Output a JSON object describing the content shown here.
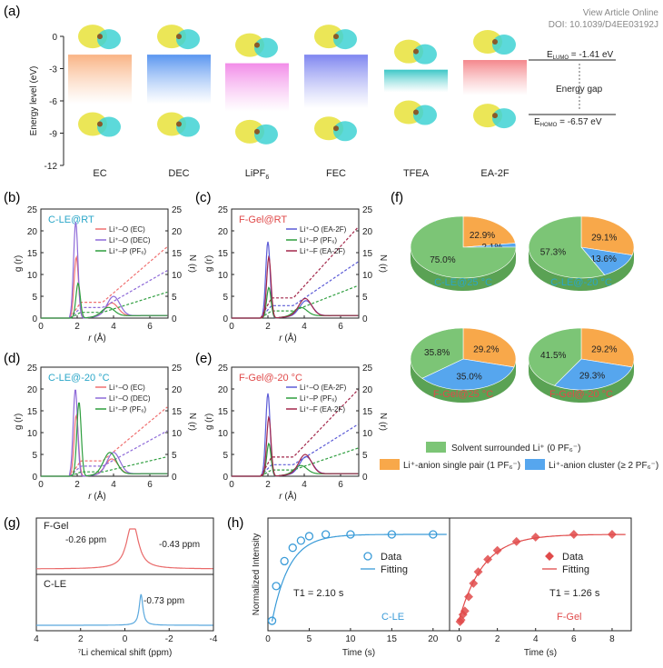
{
  "header": {
    "view_article": "View Article Online",
    "doi": "DOI: 10.1039/D4EE03192J"
  },
  "panel_labels": [
    "(a)",
    "(b)",
    "(c)",
    "(d)",
    "(e)",
    "(f)",
    "(g)",
    "(h)"
  ],
  "colors": {
    "ec": "#f9b384",
    "dec": "#5a96f0",
    "lipf6": "#f28ce8",
    "fec": "#7f86f0",
    "tfea": "#3cc7c7",
    "ea2f": "#f4878c",
    "green": "#7cc576",
    "orange": "#f8a84a",
    "blue": "#56a6ee",
    "cyan": "#2aa6c8",
    "red": "#e04a4a",
    "purple": "#8e6ad8",
    "darkred": "#a3274a",
    "ec_line": "#f07070"
  },
  "chart_data": [
    {
      "id": "a",
      "type": "bar",
      "title": "",
      "ylabel": "Energy level (eV)",
      "ylim": [
        -12,
        0
      ],
      "yticks": [
        "0",
        "-3",
        "-6",
        "-9",
        "-12"
      ],
      "categories": [
        "EC",
        "DEC",
        "LiPF",
        "FEC",
        "TFEA",
        "EA-2F"
      ],
      "category_subscripts": [
        "",
        "",
        "6",
        "",
        "",
        ""
      ],
      "lumo_homo": [
        [
          -1.7,
          -6.3
        ],
        [
          -1.7,
          -6.3
        ],
        [
          -2.5,
          -7.0
        ],
        [
          -1.7,
          -6.7
        ],
        [
          -3.1,
          -5.2
        ],
        [
          -2.2,
          -5.5
        ]
      ],
      "legend": {
        "lumo_prefix": "E",
        "lumo_sub": "LUMO",
        "lumo_value": " = -1.41 eV",
        "homo_prefix": "E",
        "homo_sub": "HOMO",
        "homo_value": " = -6.57 eV",
        "gap_label": "Energy gap"
      }
    },
    {
      "id": "b",
      "type": "line",
      "title": "C-LE@RT",
      "xlabel_italic": "r",
      "xlabel_unit": " (Å)",
      "ylabel": "g (r)",
      "y2label": "N (r)",
      "xlim": [
        0,
        7
      ],
      "ylim": [
        0,
        25
      ],
      "y2lim": [
        0,
        25
      ],
      "xticks": [
        "0",
        "2",
        "4",
        "6"
      ],
      "yticks": [
        "0",
        "5",
        "10",
        "15",
        "20",
        "25"
      ],
      "series": [
        {
          "name": "Li⁺–O (EC)",
          "color": "#f07070",
          "peaks": [
            [
              1.95,
              14.0
            ],
            [
              3.9,
              3.0
            ]
          ],
          "n_end": 16.5
        },
        {
          "name": "Li⁺–O (DEC)",
          "color": "#8e6ad8",
          "peaks": [
            [
              1.92,
              22.0
            ],
            [
              4.0,
              4.5
            ]
          ],
          "n_end": 11.0
        },
        {
          "name": "Li⁺–P (PF₆)",
          "color": "#2e9e3e",
          "peaks": [
            [
              2.05,
              8.0
            ],
            [
              3.7,
              2.0
            ]
          ],
          "n_end": 6.0
        }
      ]
    },
    {
      "id": "c",
      "type": "line",
      "title": "F-Gel@RT",
      "xlabel_italic": "r",
      "xlabel_unit": " (Å)",
      "ylabel": "g (r)",
      "y2label": "N (r)",
      "xlim": [
        0,
        7
      ],
      "ylim": [
        0,
        25
      ],
      "y2lim": [
        0,
        25
      ],
      "xticks": [
        "0",
        "2",
        "4",
        "6"
      ],
      "yticks": [
        "0",
        "5",
        "10",
        "15",
        "20",
        "25"
      ],
      "series": [
        {
          "name": "Li⁺–O (EA-2F)",
          "color": "#5b5bd6",
          "peaks": [
            [
              2.0,
              17.5
            ],
            [
              4.1,
              3.5
            ]
          ],
          "n_end": 13.0
        },
        {
          "name": "Li⁺–P (PF₆)",
          "color": "#2e9e3e",
          "peaks": [
            [
              2.05,
              7.0
            ],
            [
              3.8,
              2.0
            ]
          ],
          "n_end": 7.5
        },
        {
          "name": "Li⁺–F (EA-2F)",
          "color": "#a3274a",
          "peaks": [
            [
              2.05,
              14.0
            ],
            [
              4.05,
              4.0
            ]
          ],
          "n_end": 21.0
        }
      ]
    },
    {
      "id": "d",
      "type": "line",
      "title": "C-LE@-20 °C",
      "xlabel_italic": "r",
      "xlabel_unit": " (Å)",
      "ylabel": "g (r)",
      "y2label": "N (r)",
      "xlim": [
        0,
        7
      ],
      "ylim": [
        0,
        25
      ],
      "y2lim": [
        0,
        25
      ],
      "xticks": [
        "0",
        "2",
        "4",
        "6"
      ],
      "yticks": [
        "0",
        "5",
        "10",
        "15",
        "20",
        "25"
      ],
      "series": [
        {
          "name": "Li⁺–O (EC)",
          "color": "#f07070",
          "peaks": [
            [
              1.95,
              14.0
            ],
            [
              3.9,
              3.5
            ]
          ],
          "n_end": 16.0
        },
        {
          "name": "Li⁺–O (DEC)",
          "color": "#8e6ad8",
          "peaks": [
            [
              1.9,
              20.0
            ],
            [
              4.0,
              5.0
            ]
          ],
          "n_end": 10.5
        },
        {
          "name": "Li⁺–P (PF₆)",
          "color": "#2e9e3e",
          "peaks": [
            [
              2.1,
              17.0
            ],
            [
              3.8,
              5.0
            ]
          ],
          "n_end": 4.5
        }
      ]
    },
    {
      "id": "e",
      "type": "line",
      "title": "F-Gel@-20 °C",
      "xlabel_italic": "r",
      "xlabel_unit": " (Å)",
      "ylabel": "g (r)",
      "y2label": "N (r)",
      "xlim": [
        0,
        7
      ],
      "ylim": [
        0,
        25
      ],
      "y2lim": [
        0,
        25
      ],
      "xticks": [
        "0",
        "2",
        "4",
        "6"
      ],
      "yticks": [
        "0",
        "5",
        "10",
        "15",
        "20",
        "25"
      ],
      "series": [
        {
          "name": "Li⁺–O (EA-2F)",
          "color": "#5b5bd6",
          "peaks": [
            [
              2.0,
              19.0
            ],
            [
              4.1,
              4.0
            ]
          ],
          "n_end": 12.0
        },
        {
          "name": "Li⁺–P (PF₆)",
          "color": "#2e9e3e",
          "peaks": [
            [
              2.05,
              7.5
            ],
            [
              3.8,
              2.0
            ]
          ],
          "n_end": 6.5
        },
        {
          "name": "Li⁺–F (EA-2F)",
          "color": "#a3274a",
          "peaks": [
            [
              2.05,
              13.5
            ],
            [
              4.05,
              4.5
            ]
          ],
          "n_end": 20.0
        }
      ]
    },
    {
      "id": "f",
      "type": "pie",
      "pies": [
        {
          "title": "C-LE@25 °C",
          "title_color": "#2aa6c8",
          "slices": [
            75.0,
            22.9,
            2.1
          ],
          "labels": [
            "75.0%",
            "22.9%",
            "2.1%"
          ]
        },
        {
          "title": "C-LE@-20 °C",
          "title_color": "#2aa6c8",
          "slices": [
            57.3,
            29.1,
            13.6
          ],
          "labels": [
            "57.3%",
            "29.1%",
            "13.6%"
          ]
        },
        {
          "title": "F-Gel@25 °C",
          "title_color": "#e04a4a",
          "slices": [
            35.8,
            29.2,
            35.0
          ],
          "labels": [
            "35.8%",
            "29.2%",
            "35.0%"
          ]
        },
        {
          "title": "F-Gel@-20 °C",
          "title_color": "#e04a4a",
          "slices": [
            41.5,
            29.2,
            29.3
          ],
          "labels": [
            "41.5%",
            "29.2%",
            "29.3%"
          ]
        }
      ],
      "legend": [
        {
          "label": "Solvent surrounded Li⁺ (0 PF₆⁻)",
          "color": "#7cc576"
        },
        {
          "label": "Li⁺-anion single pair (1 PF₆⁻)",
          "color": "#f8a84a"
        },
        {
          "label": "Li⁺-anion cluster (≥ 2 PF₆⁻)",
          "color": "#56a6ee"
        }
      ]
    },
    {
      "id": "g",
      "type": "line",
      "xlabel": "⁷Li chemical shift (ppm)",
      "xlim": [
        4,
        -4
      ],
      "xticks": [
        "4",
        "2",
        "0",
        "-2",
        "-4"
      ],
      "series": [
        {
          "name": "F-Gel",
          "color": "#e96a6a",
          "peaks": [
            -0.26,
            -0.43
          ],
          "annotations": [
            "-0.26 ppm",
            "-0.43 ppm"
          ]
        },
        {
          "name": "C-LE",
          "color": "#5aa8de",
          "peaks": [
            -0.73
          ],
          "annotations": [
            "-0.73 ppm"
          ]
        }
      ]
    },
    {
      "id": "h",
      "type": "scatter",
      "ylabel": "Normalized Intensity",
      "panels": [
        {
          "name": "C-LE",
          "color": "#3a9bd8",
          "xlim": [
            0,
            22
          ],
          "xticks": [
            "0",
            "5",
            "10",
            "15",
            "20"
          ],
          "xlabel": "Time (s)",
          "x": [
            0.5,
            1,
            2,
            3,
            4,
            5,
            7,
            10,
            15,
            20
          ],
          "y": [
            0.03,
            0.42,
            0.7,
            0.85,
            0.93,
            0.98,
            1.0,
            1.0,
            1.0,
            1.0
          ],
          "t1": 2.1,
          "t1_label": "T1 = 2.10 s",
          "legend_data": "Data",
          "legend_fit": "Fitting"
        },
        {
          "name": "F-Gel",
          "color": "#e04a4a",
          "xlim": [
            -0.5,
            9
          ],
          "xticks": [
            "0",
            "2",
            "4",
            "6",
            "8"
          ],
          "xlabel": "Time (s)",
          "x": [
            0.05,
            0.1,
            0.2,
            0.3,
            0.5,
            0.75,
            1.0,
            1.5,
            2.0,
            3.0,
            4.0,
            6.0,
            8.0
          ],
          "y": [
            0.02,
            0.04,
            0.1,
            0.14,
            0.3,
            0.45,
            0.58,
            0.72,
            0.82,
            0.92,
            0.97,
            1.0,
            1.0
          ],
          "t1": 1.26,
          "t1_label": "T1 = 1.26 s",
          "legend_data": "Data",
          "legend_fit": "Fitting"
        }
      ]
    }
  ]
}
